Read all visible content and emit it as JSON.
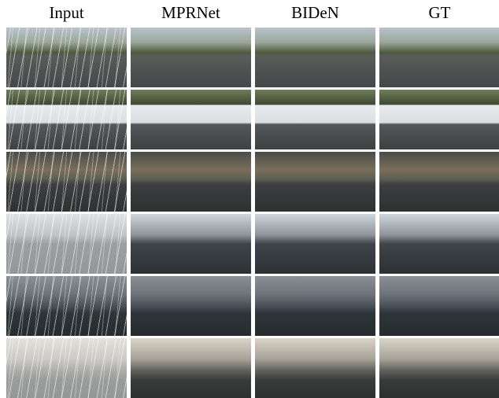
{
  "header": {
    "columns": [
      "Input",
      "MPRNet",
      "BIDeN",
      "GT"
    ]
  }
}
